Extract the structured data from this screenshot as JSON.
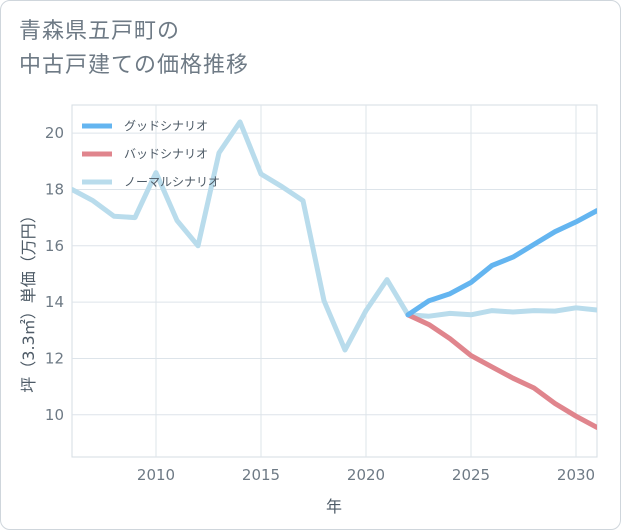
{
  "title_lines": [
    "青森県五戸町の",
    "中古戸建ての価格推移"
  ],
  "chart_data": {
    "type": "line",
    "xlabel": "年",
    "ylabel": "坪（3.3㎡）単価（万円）",
    "xlim": [
      2006,
      2031
    ],
    "ylim": [
      8.5,
      21
    ],
    "x_ticks": [
      2010,
      2015,
      2020,
      2025,
      2030
    ],
    "y_ticks": [
      10,
      12,
      14,
      16,
      18,
      20
    ],
    "grid": true,
    "legend_position": "top-left",
    "series": [
      {
        "name": "グッドシナリオ",
        "color": "#64b5f0",
        "x": [
          2022,
          2023,
          2024,
          2025,
          2026,
          2027,
          2028,
          2029,
          2030,
          2031
        ],
        "values": [
          13.55,
          14.05,
          14.3,
          14.7,
          15.3,
          15.6,
          16.05,
          16.5,
          16.85,
          17.25
        ]
      },
      {
        "name": "バッドシナリオ",
        "color": "#e0858d",
        "x": [
          2022,
          2023,
          2024,
          2025,
          2026,
          2027,
          2028,
          2029,
          2030,
          2031
        ],
        "values": [
          13.55,
          13.2,
          12.7,
          12.1,
          11.7,
          11.3,
          10.95,
          10.4,
          9.95,
          9.55
        ]
      },
      {
        "name": "ノーマルシナリオ",
        "color": "#b9dcec",
        "x": [
          2006,
          2007,
          2008,
          2009,
          2010,
          2011,
          2012,
          2013,
          2014,
          2015,
          2016,
          2017,
          2018,
          2019,
          2020,
          2021,
          2022,
          2023,
          2024,
          2025,
          2026,
          2027,
          2028,
          2029,
          2030,
          2031
        ],
        "values": [
          18.0,
          17.6,
          17.05,
          17.0,
          18.6,
          16.9,
          16.0,
          19.3,
          20.4,
          18.55,
          18.1,
          17.6,
          14.05,
          12.3,
          13.7,
          14.8,
          13.55,
          13.5,
          13.6,
          13.55,
          13.7,
          13.65,
          13.7,
          13.68,
          13.8,
          13.72
        ]
      }
    ]
  }
}
